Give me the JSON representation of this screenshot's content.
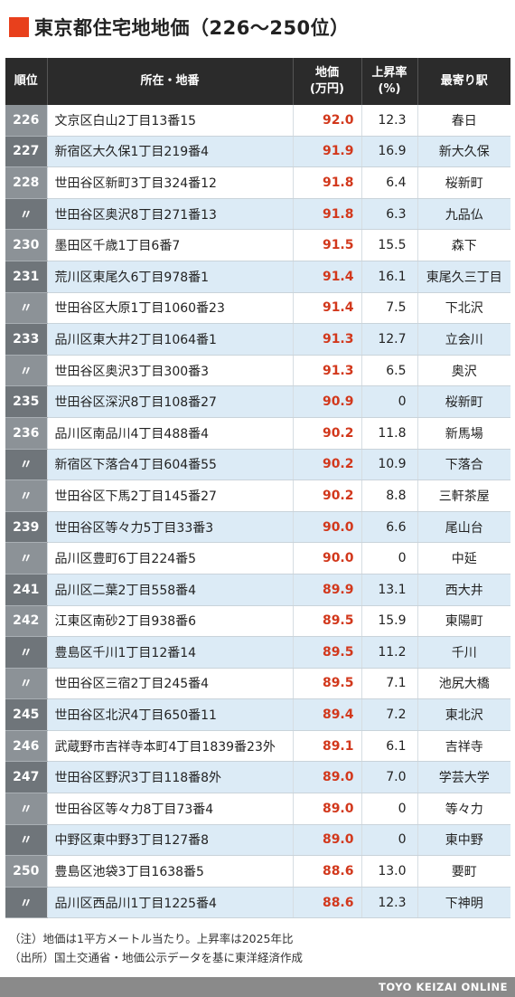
{
  "title": "東京都住宅地地価（226〜250位）",
  "headers": {
    "rank": "順位",
    "address": "所在・地番",
    "price_line1": "地価",
    "price_line2": "(万円)",
    "rate_line1": "上昇率",
    "rate_line2": "(%)",
    "station": "最寄り駅"
  },
  "rows": [
    {
      "rank": "226",
      "address": "文京区白山2丁目13番15",
      "price": "92.0",
      "rate": "12.3",
      "station": "春日"
    },
    {
      "rank": "227",
      "address": "新宿区大久保1丁目219番4",
      "price": "91.9",
      "rate": "16.9",
      "station": "新大久保"
    },
    {
      "rank": "228",
      "address": "世田谷区新町3丁目324番12",
      "price": "91.8",
      "rate": "6.4",
      "station": "桜新町"
    },
    {
      "rank": "〃",
      "address": "世田谷区奥沢8丁目271番13",
      "price": "91.8",
      "rate": "6.3",
      "station": "九品仏"
    },
    {
      "rank": "230",
      "address": "墨田区千歳1丁目6番7",
      "price": "91.5",
      "rate": "15.5",
      "station": "森下"
    },
    {
      "rank": "231",
      "address": "荒川区東尾久6丁目978番1",
      "price": "91.4",
      "rate": "16.1",
      "station": "東尾久三丁目"
    },
    {
      "rank": "〃",
      "address": "世田谷区大原1丁目1060番23",
      "price": "91.4",
      "rate": "7.5",
      "station": "下北沢"
    },
    {
      "rank": "233",
      "address": "品川区東大井2丁目1064番1",
      "price": "91.3",
      "rate": "12.7",
      "station": "立会川"
    },
    {
      "rank": "〃",
      "address": "世田谷区奥沢3丁目300番3",
      "price": "91.3",
      "rate": "6.5",
      "station": "奥沢"
    },
    {
      "rank": "235",
      "address": "世田谷区深沢8丁目108番27",
      "price": "90.9",
      "rate": "0",
      "station": "桜新町"
    },
    {
      "rank": "236",
      "address": "品川区南品川4丁目488番4",
      "price": "90.2",
      "rate": "11.8",
      "station": "新馬場"
    },
    {
      "rank": "〃",
      "address": "新宿区下落合4丁目604番55",
      "price": "90.2",
      "rate": "10.9",
      "station": "下落合"
    },
    {
      "rank": "〃",
      "address": "世田谷区下馬2丁目145番27",
      "price": "90.2",
      "rate": "8.8",
      "station": "三軒茶屋"
    },
    {
      "rank": "239",
      "address": "世田谷区等々力5丁目33番3",
      "price": "90.0",
      "rate": "6.6",
      "station": "尾山台"
    },
    {
      "rank": "〃",
      "address": "品川区豊町6丁目224番5",
      "price": "90.0",
      "rate": "0",
      "station": "中延"
    },
    {
      "rank": "241",
      "address": "品川区二葉2丁目558番4",
      "price": "89.9",
      "rate": "13.1",
      "station": "西大井"
    },
    {
      "rank": "242",
      "address": "江東区南砂2丁目938番6",
      "price": "89.5",
      "rate": "15.9",
      "station": "東陽町"
    },
    {
      "rank": "〃",
      "address": "豊島区千川1丁目12番14",
      "price": "89.5",
      "rate": "11.2",
      "station": "千川"
    },
    {
      "rank": "〃",
      "address": "世田谷区三宿2丁目245番4",
      "price": "89.5",
      "rate": "7.1",
      "station": "池尻大橋"
    },
    {
      "rank": "245",
      "address": "世田谷区北沢4丁目650番11",
      "price": "89.4",
      "rate": "7.2",
      "station": "東北沢"
    },
    {
      "rank": "246",
      "address": "武蔵野市吉祥寺本町4丁目1839番23外",
      "price": "89.1",
      "rate": "6.1",
      "station": "吉祥寺"
    },
    {
      "rank": "247",
      "address": "世田谷区野沢3丁目118番8外",
      "price": "89.0",
      "rate": "7.0",
      "station": "学芸大学"
    },
    {
      "rank": "〃",
      "address": "世田谷区等々力8丁目73番4",
      "price": "89.0",
      "rate": "0",
      "station": "等々力"
    },
    {
      "rank": "〃",
      "address": "中野区東中野3丁目127番8",
      "price": "89.0",
      "rate": "0",
      "station": "東中野"
    },
    {
      "rank": "250",
      "address": "豊島区池袋3丁目1638番5",
      "price": "88.6",
      "rate": "13.0",
      "station": "要町"
    },
    {
      "rank": "〃",
      "address": "品川区西品川1丁目1225番4",
      "price": "88.6",
      "rate": "12.3",
      "station": "下神明"
    }
  ],
  "notes": {
    "note": "（注）地価は1平方メートル当たり。上昇率は2025年比",
    "source": "（出所）国土交通省・地価公示データを基に東洋経済作成"
  },
  "footer": "TOYO KEIZAI ONLINE",
  "colors": {
    "accent": "#e8401c",
    "price_text": "#d2381c",
    "header_bg": "#2b2b2b",
    "row_alt_bg": "#dcebf6"
  }
}
